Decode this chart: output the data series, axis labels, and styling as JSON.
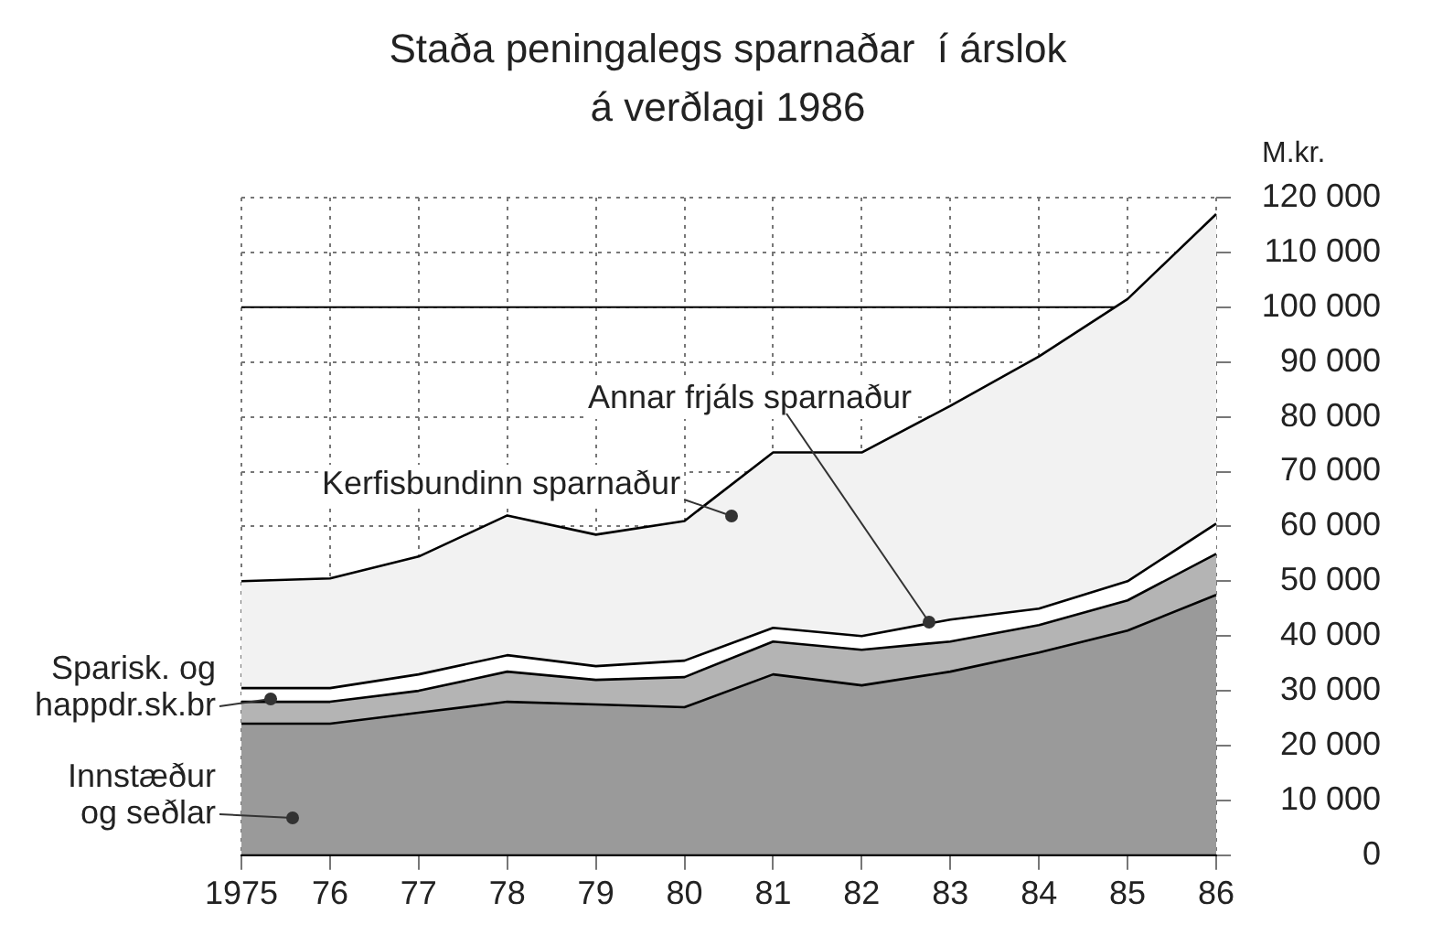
{
  "chart_data": {
    "type": "area",
    "title": "Staða peningalegs sparnaðar  í árslok\ná verðlagi 1986",
    "ylabel": "M.kr.",
    "stacked": true,
    "grid": true,
    "marker": "none",
    "line_style": "solid",
    "categories": [
      "1975",
      "76",
      "77",
      "78",
      "79",
      "80",
      "81",
      "82",
      "83",
      "84",
      "85",
      "86"
    ],
    "series": [
      {
        "name": "Innstæður\nog seðlar",
        "color": "#9a9a9a",
        "values": [
          24000,
          24000,
          26000,
          28000,
          27500,
          27000,
          33000,
          31000,
          33500,
          37000,
          41000,
          47500
        ]
      },
      {
        "name": "Sparisk. og\nhappdr.sk.br",
        "color": "#b4b4b4",
        "values": [
          4000,
          4000,
          4000,
          5500,
          4500,
          5500,
          6000,
          6500,
          5500,
          5000,
          5500,
          7500
        ]
      },
      {
        "name": "Annar frjáls sparnaður",
        "color": "#ffffff",
        "values": [
          2500,
          2500,
          3000,
          3000,
          2500,
          3000,
          2500,
          2500,
          4000,
          3000,
          3500,
          5500
        ]
      },
      {
        "name": "Kerfisbundinn sparnaður",
        "color": "#f2f2f2",
        "values": [
          19500,
          20000,
          21500,
          25500,
          24000,
          25500,
          32000,
          33500,
          39000,
          46000,
          51500,
          56500
        ]
      }
    ],
    "ylim": [
      0,
      120000
    ],
    "yticks": [
      {
        "value": 0,
        "label": "0"
      },
      {
        "value": 10000,
        "label": "10 000"
      },
      {
        "value": 20000,
        "label": "20 000"
      },
      {
        "value": 30000,
        "label": "30 000"
      },
      {
        "value": 40000,
        "label": "40 000"
      },
      {
        "value": 50000,
        "label": "50 000"
      },
      {
        "value": 60000,
        "label": "60 000"
      },
      {
        "value": 70000,
        "label": "70 000"
      },
      {
        "value": 80000,
        "label": "80 000"
      },
      {
        "value": 90000,
        "label": "90 000"
      },
      {
        "value": 100000,
        "label": "100 000"
      },
      {
        "value": 110000,
        "label": "110 000"
      },
      {
        "value": 120000,
        "label": "120 000"
      }
    ],
    "ref_lines": [
      {
        "axis": "y",
        "value": 100000,
        "color": "#000000"
      }
    ]
  }
}
